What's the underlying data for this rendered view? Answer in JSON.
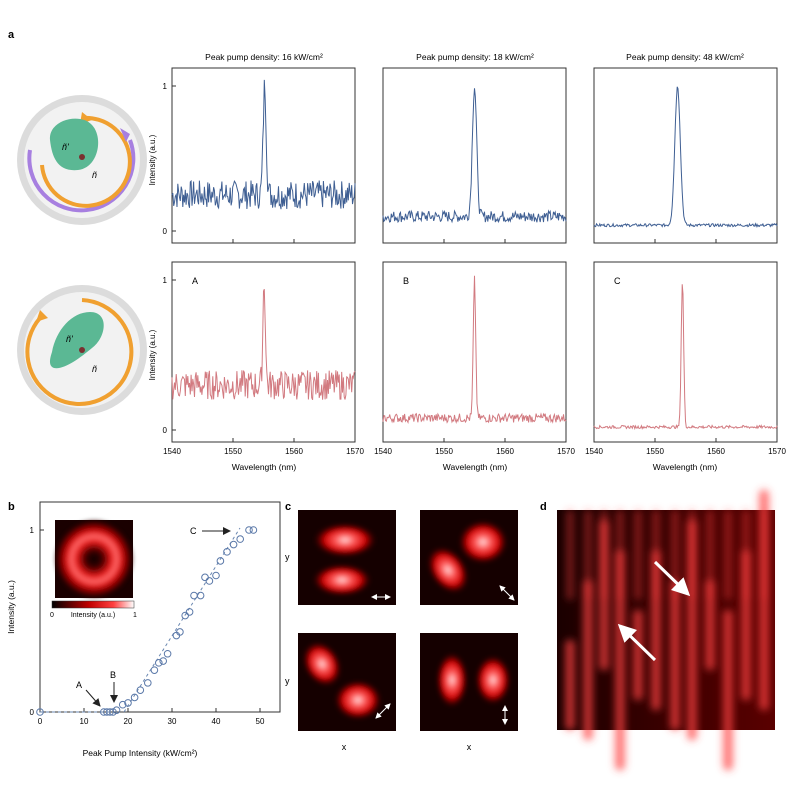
{
  "panel_labels": {
    "a": "a",
    "b": "b",
    "c": "c",
    "d": "d"
  },
  "spectra": {
    "column_titles": [
      "Peak pump density: 16 kW/cm²",
      "Peak pump density: 18 kW/cm²",
      "Peak pump density: 48 kW/cm²"
    ],
    "ylabel": "Intensity (a.u.)",
    "xlabel": "Wavelength (nm)",
    "y_ticks": [
      "0",
      "1"
    ],
    "x_ticks": [
      "1540",
      "1550",
      "1560",
      "1570"
    ],
    "xlim": [
      1540,
      1570
    ],
    "row_markers": [
      "A",
      "B",
      "C"
    ],
    "colors": {
      "top": "#3f5f93",
      "bottom": "#d27a80"
    }
  },
  "schematic": {
    "n_prime": "ñ'",
    "n": "ñ"
  },
  "threshold": {
    "ylabel": "Intensity (a.u.)",
    "xlabel": "Peak Pump Intensity (kW/cm²)",
    "x_ticks": [
      "0",
      "10",
      "20",
      "30",
      "40",
      "50"
    ],
    "y_ticks": [
      "0",
      "1"
    ],
    "annotations": [
      "A",
      "B",
      "C"
    ],
    "inset_scale": {
      "min": "0",
      "label": "Intensity (a.u.)",
      "max": "1"
    }
  },
  "modes": {
    "ylabel": "y",
    "xlabel": "x"
  },
  "chart_data": [
    {
      "type": "line",
      "title": "Peak pump density: 16 kW/cm²",
      "xlabel": "Wavelength (nm)",
      "ylabel": "Intensity (a.u.)",
      "xlim": [
        1540,
        1570
      ],
      "ylim": [
        0,
        1
      ],
      "series": [
        {
          "peak_nm": 1555.2,
          "peak": 1.0,
          "baseline": 0.25,
          "noise": 0.1,
          "width_nm": 0.25
        }
      ]
    },
    {
      "type": "line",
      "title": "Peak pump density: 18 kW/cm²",
      "xlabel": "Wavelength (nm)",
      "ylabel": "Intensity (a.u.)",
      "xlim": [
        1540,
        1570
      ],
      "ylim": [
        0,
        1
      ],
      "series": [
        {
          "peak_nm": 1555.0,
          "peak": 1.0,
          "baseline": 0.1,
          "noise": 0.04,
          "width_nm": 0.35
        }
      ]
    },
    {
      "type": "line",
      "title": "Peak pump density: 48 kW/cm²",
      "xlabel": "Wavelength (nm)",
      "ylabel": "Intensity (a.u.)",
      "xlim": [
        1540,
        1570
      ],
      "ylim": [
        0,
        1
      ],
      "series": [
        {
          "peak_nm": 1553.7,
          "peak": 1.0,
          "baseline": 0.04,
          "noise": 0.01,
          "width_nm": 0.45
        }
      ]
    },
    {
      "type": "line",
      "xlabel": "Wavelength (nm)",
      "ylabel": "Intensity (a.u.)",
      "xlim": [
        1540,
        1570
      ],
      "ylim": [
        0,
        1
      ],
      "series": [
        {
          "peak_nm": 1555.1,
          "peak": 1.0,
          "baseline": 0.3,
          "noise": 0.1,
          "width_nm": 0.2
        }
      ]
    },
    {
      "type": "line",
      "xlabel": "Wavelength (nm)",
      "ylabel": "Intensity (a.u.)",
      "xlim": [
        1540,
        1570
      ],
      "ylim": [
        0,
        1
      ],
      "series": [
        {
          "peak_nm": 1555.0,
          "peak": 1.0,
          "baseline": 0.08,
          "noise": 0.03,
          "width_nm": 0.2
        }
      ]
    },
    {
      "type": "line",
      "xlabel": "Wavelength (nm)",
      "ylabel": "Intensity (a.u.)",
      "xlim": [
        1540,
        1570
      ],
      "ylim": [
        0,
        1
      ],
      "series": [
        {
          "peak_nm": 1554.5,
          "peak": 1.0,
          "baseline": 0.02,
          "noise": 0.01,
          "width_nm": 0.2
        }
      ]
    },
    {
      "type": "scatter",
      "xlabel": "Peak Pump Intensity (kW/cm²)",
      "ylabel": "Intensity (a.u.)",
      "xlim": [
        0,
        50
      ],
      "ylim": [
        0,
        1
      ],
      "x": [
        0,
        14.5,
        15.2,
        15.9,
        16.6,
        17.4,
        18.8,
        20.0,
        21.5,
        22.8,
        24.5,
        26.0,
        27.0,
        28.0,
        29.0,
        31.0,
        31.8,
        33.0,
        34.0,
        35.0,
        36.5,
        37.5,
        38.5,
        40.0,
        41.0,
        42.5,
        44.0,
        45.5,
        47.5,
        48.5
      ],
      "y": [
        0,
        0,
        0,
        0,
        0,
        0.01,
        0.04,
        0.05,
        0.08,
        0.12,
        0.16,
        0.23,
        0.27,
        0.28,
        0.32,
        0.42,
        0.44,
        0.53,
        0.55,
        0.64,
        0.64,
        0.74,
        0.72,
        0.75,
        0.83,
        0.88,
        0.92,
        0.95,
        1.0,
        1.0
      ]
    }
  ]
}
